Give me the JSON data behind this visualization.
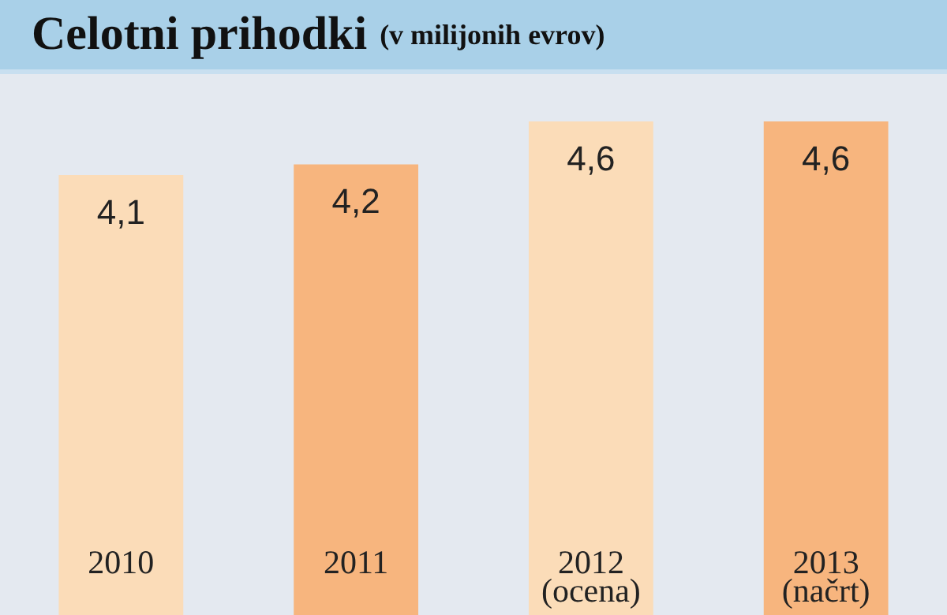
{
  "chart_data": {
    "type": "bar",
    "title": "Celotni prihodki",
    "subtitle": "(v milijonih evrov)",
    "categories": [
      "2010",
      "2011",
      "2012 (ocena)",
      "2013 (načrt)"
    ],
    "values": [
      4.1,
      4.2,
      4.6,
      4.6
    ],
    "value_labels": [
      "4,1",
      "4,2",
      "4,6",
      "4,6"
    ],
    "colors": [
      "#fbdcb8",
      "#f7b57e",
      "#fbdcb8",
      "#f7b57e"
    ],
    "legend": false,
    "tick_labels": "x"
  }
}
